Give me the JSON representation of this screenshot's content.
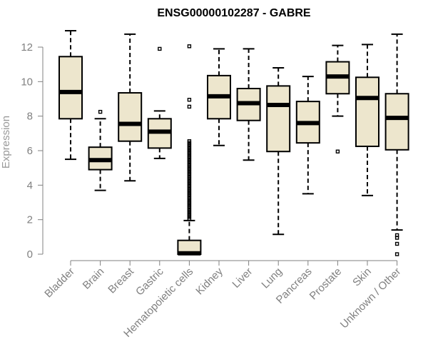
{
  "chart_data": {
    "type": "boxplot",
    "title": "ENSG00000102287 - GABRE",
    "xlabel": "",
    "ylabel": "Expression",
    "ylim": [
      0,
      13
    ],
    "yticks": [
      0,
      2,
      4,
      6,
      8,
      10,
      12
    ],
    "colors": {
      "box_fill": "#ede6cd",
      "stroke": "#000000",
      "axis": "#808080"
    },
    "categories": [
      "Bladder",
      "Brain",
      "Breast",
      "Gastric",
      "Hematopoietic cells",
      "Kidney",
      "Liver",
      "Lung",
      "Pancreas",
      "Prostate",
      "Skin",
      "Unknown / Other"
    ],
    "boxes": [
      {
        "name": "Bladder",
        "whisker_low": 5.5,
        "q1": 7.85,
        "median": 9.4,
        "q3": 11.45,
        "whisker_high": 12.95,
        "outliers": []
      },
      {
        "name": "Brain",
        "whisker_low": 3.7,
        "q1": 4.9,
        "median": 5.45,
        "q3": 6.2,
        "whisker_high": 7.85,
        "outliers": [
          8.25
        ]
      },
      {
        "name": "Breast",
        "whisker_low": 4.25,
        "q1": 6.55,
        "median": 7.55,
        "q3": 9.35,
        "whisker_high": 12.75,
        "outliers": []
      },
      {
        "name": "Gastric",
        "whisker_low": 5.55,
        "q1": 6.15,
        "median": 7.1,
        "q3": 7.85,
        "whisker_high": 8.3,
        "outliers": [
          11.9
        ]
      },
      {
        "name": "Hematopoietic cells",
        "whisker_low": 0.0,
        "q1": 0.0,
        "median": 0.05,
        "q3": 0.8,
        "whisker_high": 1.95,
        "outliers": [
          12.05,
          8.95,
          8.55,
          6.55,
          6.45,
          6.35,
          6.25,
          6.15,
          6.05,
          5.95,
          5.85,
          5.75,
          5.65,
          5.55,
          5.45,
          5.35,
          5.25,
          5.15,
          5.05,
          4.95,
          4.85,
          4.75,
          4.65,
          4.55,
          4.45,
          4.35,
          4.25,
          4.15,
          4.05,
          3.95,
          3.85,
          3.75,
          3.65,
          3.55,
          3.45,
          3.35,
          3.25,
          3.15,
          3.05,
          2.95,
          2.85,
          2.75,
          2.65,
          2.55,
          2.45,
          2.35,
          2.25,
          2.15,
          2.05
        ]
      },
      {
        "name": "Kidney",
        "whisker_low": 6.3,
        "q1": 7.85,
        "median": 9.15,
        "q3": 10.35,
        "whisker_high": 11.9,
        "outliers": []
      },
      {
        "name": "Liver",
        "whisker_low": 5.45,
        "q1": 7.75,
        "median": 8.75,
        "q3": 9.6,
        "whisker_high": 11.9,
        "outliers": []
      },
      {
        "name": "Lung",
        "whisker_low": 1.15,
        "q1": 5.95,
        "median": 8.65,
        "q3": 9.75,
        "whisker_high": 10.8,
        "outliers": []
      },
      {
        "name": "Pancreas",
        "whisker_low": 3.5,
        "q1": 6.45,
        "median": 7.6,
        "q3": 8.85,
        "whisker_high": 10.3,
        "outliers": []
      },
      {
        "name": "Prostate",
        "whisker_low": 8.0,
        "q1": 9.3,
        "median": 10.3,
        "q3": 11.15,
        "whisker_high": 12.1,
        "outliers": [
          5.95
        ]
      },
      {
        "name": "Skin",
        "whisker_low": 3.4,
        "q1": 6.25,
        "median": 9.05,
        "q3": 10.25,
        "whisker_high": 12.15,
        "outliers": []
      },
      {
        "name": "Unknown / Other",
        "whisker_low": 1.4,
        "q1": 6.05,
        "median": 7.9,
        "q3": 9.3,
        "whisker_high": 12.75,
        "outliers": [
          1.1,
          0.95,
          0.6,
          0.0
        ]
      }
    ]
  }
}
